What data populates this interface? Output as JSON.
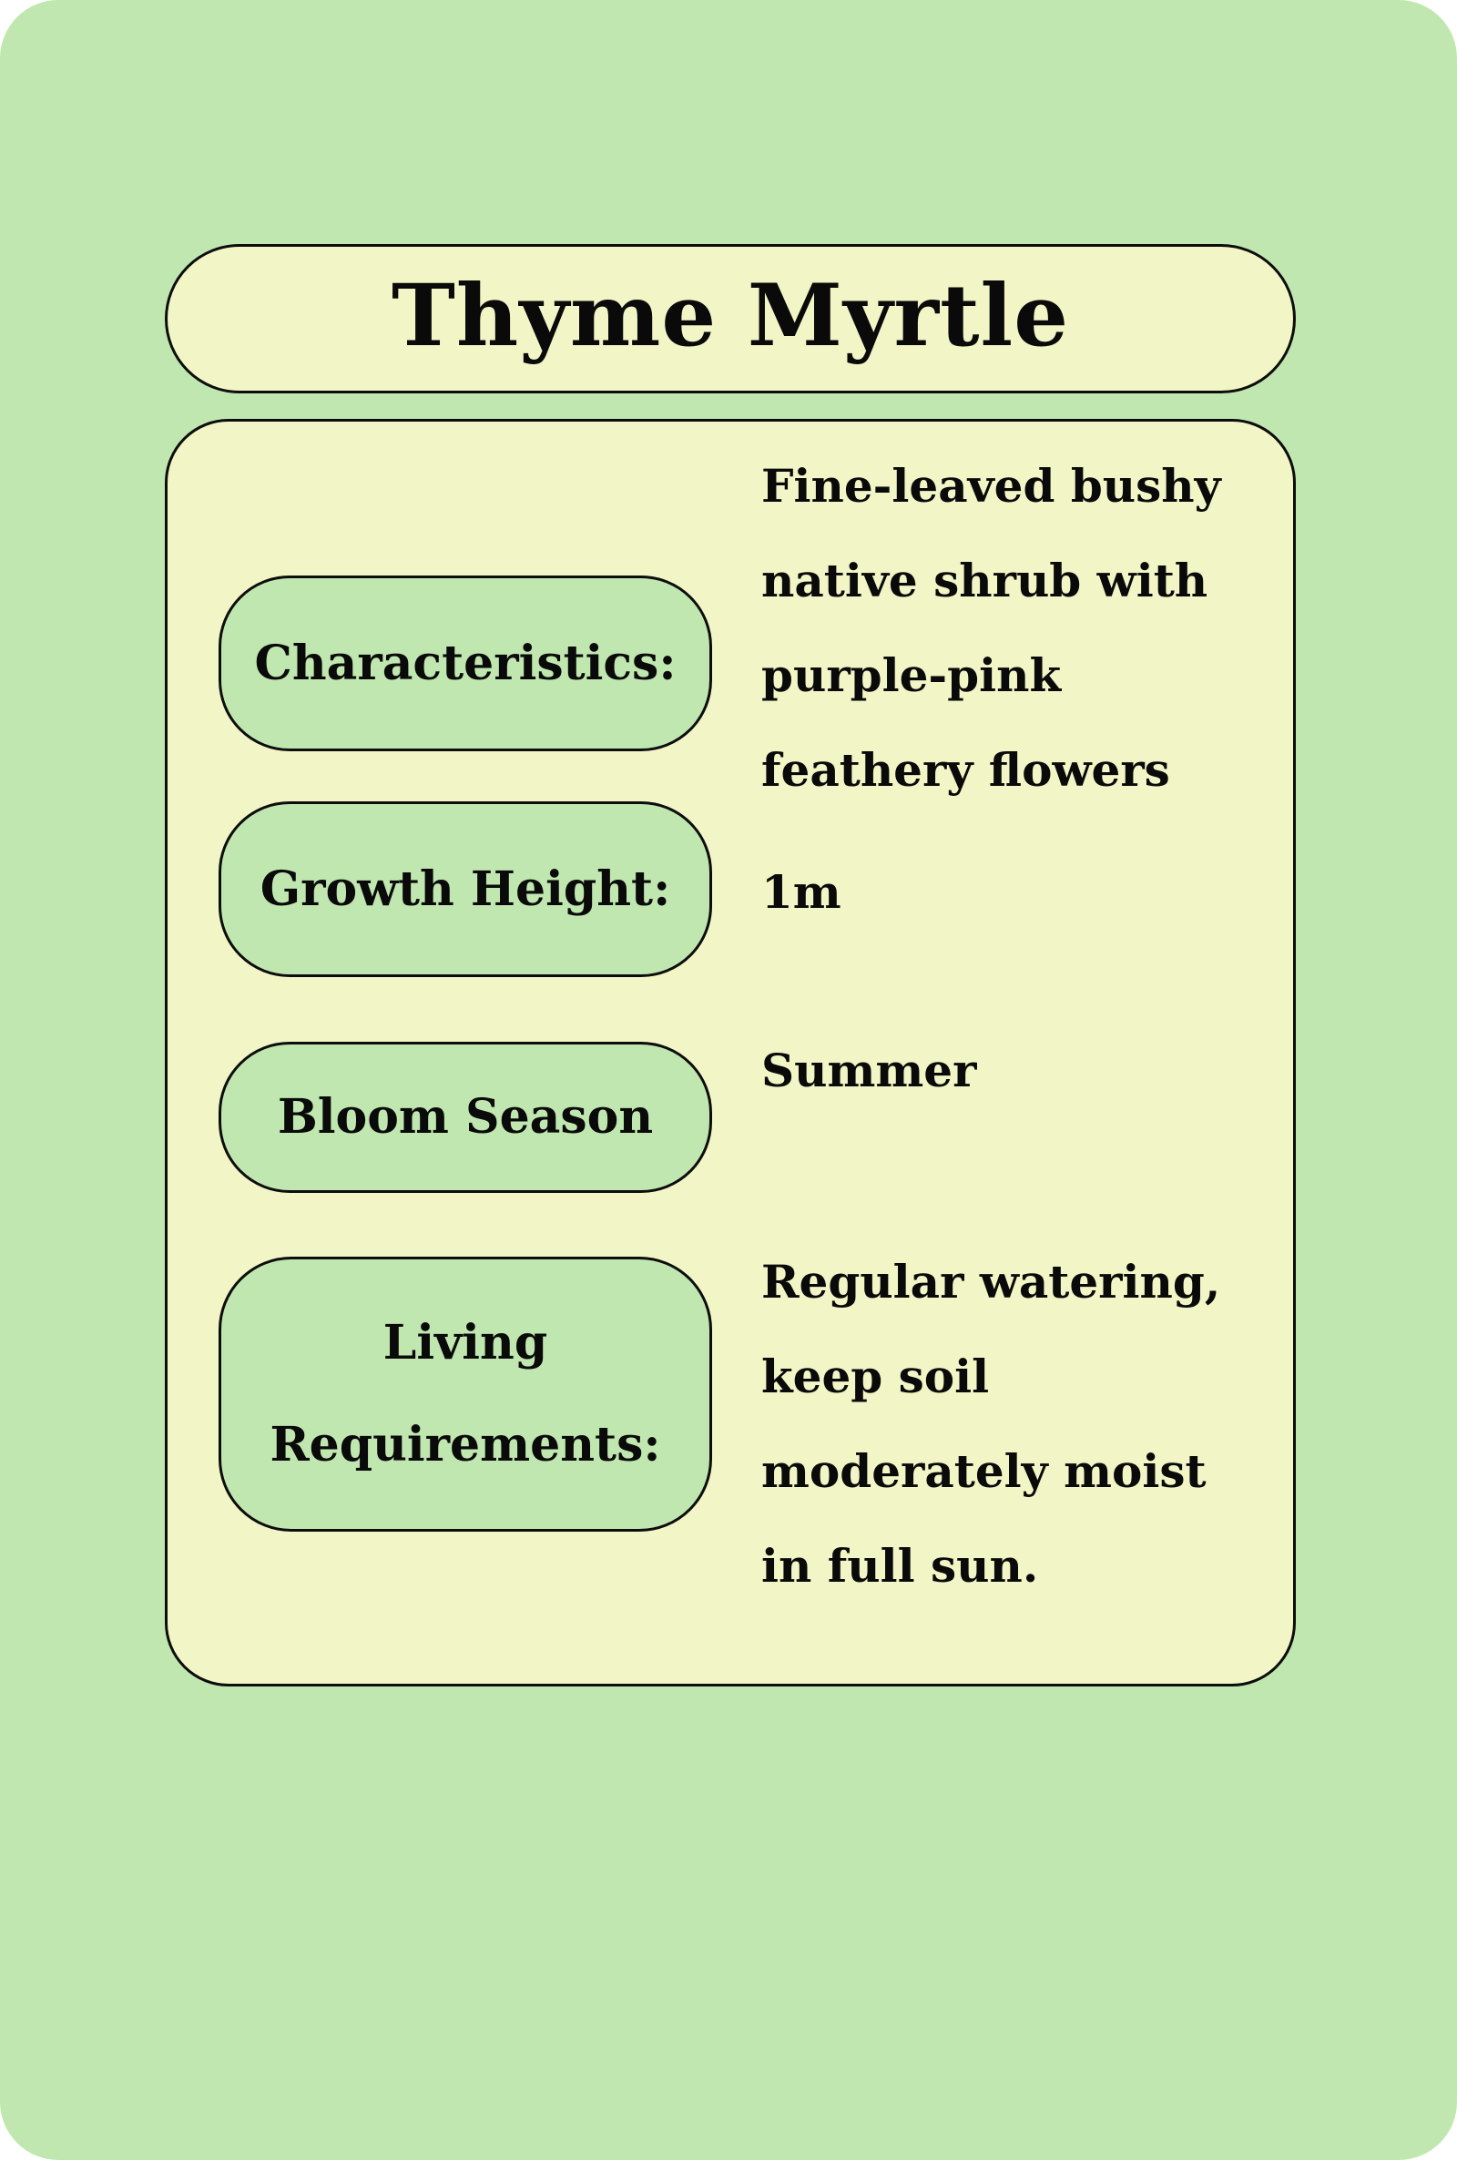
{
  "card": {
    "title": "Thyme Myrtle",
    "rows": [
      {
        "label": "Characteristics:",
        "value": "Fine-leaved bushy native shrub with purple-pink feathery flowers"
      },
      {
        "label": "Growth Height:",
        "value": "1m"
      },
      {
        "label": "Bloom Season",
        "value": "Summer"
      },
      {
        "label": "Living Requirements:",
        "value": "Regular watering, keep soil moderately moist in full sun."
      }
    ]
  },
  "colors": {
    "background": "#c1e7b0",
    "panel": "#f2f6c6",
    "pill": "#c1e7b0",
    "border": "#0d0d0d",
    "text": "#0a0a0a"
  }
}
